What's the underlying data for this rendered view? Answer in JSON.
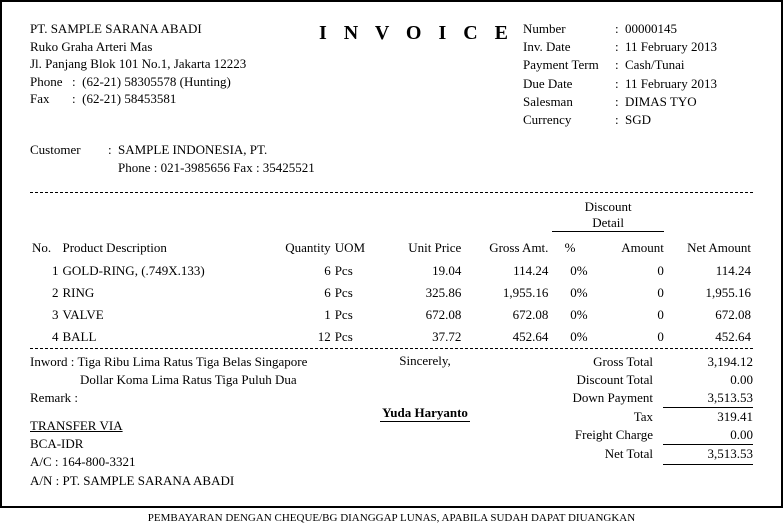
{
  "company": {
    "name": "PT. SAMPLE SARANA ABADI",
    "addr1": "Ruko Graha Arteri Mas",
    "addr2": "Jl. Panjang Blok 101 No.1, Jakarta 12223",
    "phone_label": "Phone",
    "phone": "(62-21) 58305578 (Hunting)",
    "fax_label": "Fax",
    "fax": "(62-21) 58453581"
  },
  "title": "I N V O I C E",
  "meta": {
    "number_label": "Number",
    "number": "00000145",
    "inv_date_label": "Inv. Date",
    "inv_date": "11 February 2013",
    "payment_term_label": "Payment Term",
    "payment_term": "Cash/Tunai",
    "due_date_label": "Due Date",
    "due_date": "11 February 2013",
    "salesman_label": "Salesman",
    "salesman": "DIMAS TYO",
    "currency_label": "Currency",
    "currency": "SGD"
  },
  "customer": {
    "label": "Customer",
    "name": "SAMPLE  INDONESIA, PT.",
    "contact": "Phone : 021-3985656   Fax : 35425521"
  },
  "columns": {
    "no": "No.",
    "desc": "Product Description",
    "qty": "Quantity",
    "uom": "UOM",
    "price": "Unit Price",
    "gross": "Gross Amt.",
    "disc_header": "Discount Detail",
    "disc_pct": "%",
    "disc_amt": "Amount",
    "net": "Net Amount"
  },
  "items": [
    {
      "no": "1",
      "desc": "GOLD-RING, (.749X.133)",
      "qty": "6",
      "uom": "Pcs",
      "price": "19.04",
      "gross": "114.24",
      "disc_pct": "0%",
      "disc_amt": "0",
      "net": "114.24"
    },
    {
      "no": "2",
      "desc": "RING",
      "qty": "6",
      "uom": "Pcs",
      "price": "325.86",
      "gross": "1,955.16",
      "disc_pct": "0%",
      "disc_amt": "0",
      "net": "1,955.16"
    },
    {
      "no": "3",
      "desc": "VALVE",
      "qty": "1",
      "uom": "Pcs",
      "price": "672.08",
      "gross": "672.08",
      "disc_pct": "0%",
      "disc_amt": "0",
      "net": "672.08"
    },
    {
      "no": "4",
      "desc": "BALL",
      "qty": "12",
      "uom": "Pcs",
      "price": "37.72",
      "gross": "452.64",
      "disc_pct": "0%",
      "disc_amt": "0",
      "net": "452.64"
    }
  ],
  "inword": {
    "label": "Inword :",
    "line1": "Tiga Ribu Lima Ratus Tiga Belas Singapore",
    "line2": "Dollar Koma Lima Ratus Tiga Puluh Dua"
  },
  "remark_label": "Remark :",
  "sincerely": "Sincerely,",
  "signature": "Yuda  Haryanto",
  "transfer": {
    "head": "TRANSFER VIA",
    "bank": "BCA-IDR",
    "ac": "A/C : 164-800-3321",
    "an": "A/N : PT. SAMPLE SARANA ABADI"
  },
  "totals": {
    "gross_label": "Gross Total",
    "gross": "3,194.12",
    "disc_label": "Discount Total",
    "disc": "0.00",
    "down_label": "Down Payment",
    "down": "3,513.53",
    "tax_label": "Tax",
    "tax": "319.41",
    "freight_label": "Freight Charge",
    "freight": "0.00",
    "net_label": "Net Total",
    "net": "3,513.53"
  },
  "payment_note": "PEMBAYARAN DENGAN CHEQUE/BG DIANGGAP LUNAS, APABILA SUDAH DAPAT DIUANGKAN"
}
